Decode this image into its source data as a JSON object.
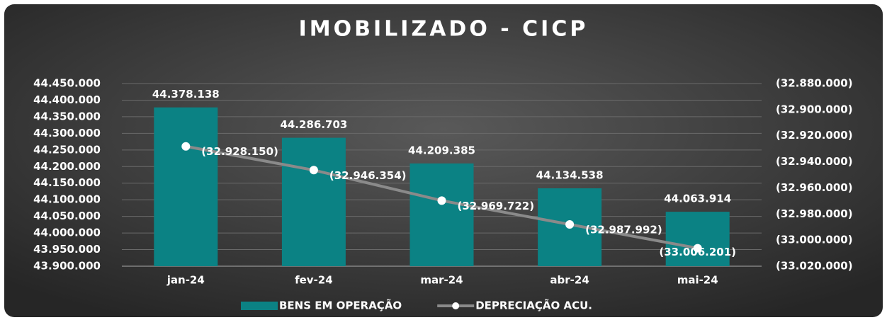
{
  "chart_data": {
    "type": "bar",
    "title": "IMOBILIZADO - CICP",
    "categories": [
      "jan-24",
      "fev-24",
      "mar-24",
      "abr-24",
      "mai-24"
    ],
    "series": [
      {
        "name": "BENS EM OPERAÇÃO",
        "type": "bar",
        "color": "#0b8284",
        "values": [
          44378138,
          44286703,
          44209385,
          44134538,
          44063914
        ],
        "value_labels": [
          "44.378.138",
          "44.286.703",
          "44.209.385",
          "44.134.538",
          "44.063.914"
        ]
      },
      {
        "name": "DEPRECIAÇÃO ACU.",
        "type": "line",
        "axis": "y2",
        "color": "#8a8a8a",
        "values": [
          -32928150,
          -32946354,
          -32969722,
          -32987992,
          -33006201
        ],
        "value_labels": [
          "(32.928.150)",
          "(32.946.354)",
          "(32.969.722)",
          "(32.987.992)",
          "(33.006.201)"
        ]
      }
    ],
    "ylim": [
      43900000,
      44450000
    ],
    "yticks": [
      {
        "value": 43900000,
        "label": "43.900.000"
      },
      {
        "value": 43950000,
        "label": "43.950.000"
      },
      {
        "value": 44000000,
        "label": "44.000.000"
      },
      {
        "value": 44050000,
        "label": "44.050.000"
      },
      {
        "value": 44100000,
        "label": "44.100.000"
      },
      {
        "value": 44150000,
        "label": "44.150.000"
      },
      {
        "value": 44200000,
        "label": "44.200.000"
      },
      {
        "value": 44250000,
        "label": "44.250.000"
      },
      {
        "value": 44300000,
        "label": "44.300.000"
      },
      {
        "value": 44350000,
        "label": "44.350.000"
      },
      {
        "value": 44400000,
        "label": "44.400.000"
      },
      {
        "value": 44450000,
        "label": "44.450.000"
      }
    ],
    "y2lim": [
      -33020000,
      -32880000
    ],
    "y2ticks": [
      {
        "value": -32880000,
        "label": "(32.880.000)"
      },
      {
        "value": -32900000,
        "label": "(32.900.000)"
      },
      {
        "value": -32920000,
        "label": "(32.920.000)"
      },
      {
        "value": -32940000,
        "label": "(32.940.000)"
      },
      {
        "value": -32960000,
        "label": "(32.960.000)"
      },
      {
        "value": -32980000,
        "label": "(32.980.000)"
      },
      {
        "value": -33000000,
        "label": "(33.000.000)"
      },
      {
        "value": -33020000,
        "label": "(33.020.000)"
      }
    ],
    "grid": true,
    "legend": "bottom"
  }
}
